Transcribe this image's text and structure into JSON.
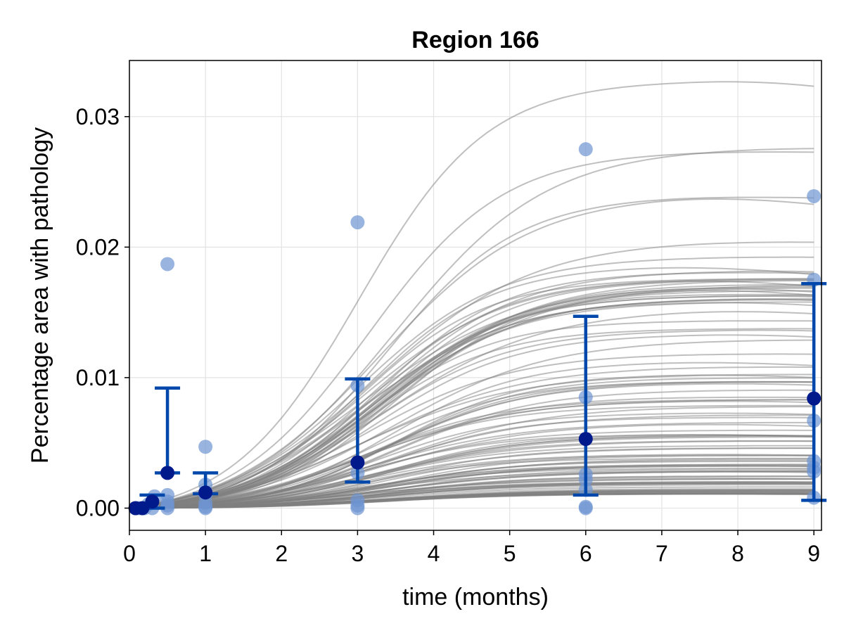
{
  "chart_data": {
    "type": "scatter",
    "title": "Region 166",
    "xlabel": "time (months)",
    "ylabel": "Percentage area with pathology",
    "xlim": [
      0,
      9.1
    ],
    "ylim": [
      -0.0017,
      0.0343
    ],
    "xticks": [
      0,
      1,
      2,
      3,
      4,
      5,
      6,
      7,
      8,
      9
    ],
    "xtick_labels": [
      "0",
      "1",
      "2",
      "3",
      "4",
      "5",
      "6",
      "7",
      "8",
      "9"
    ],
    "yticks": [
      0.0,
      0.01,
      0.02,
      0.03
    ],
    "ytick_labels": [
      "0.00",
      "0.01",
      "0.02",
      "0.03"
    ],
    "grid": true,
    "colors": {
      "curves": "#7f7f7f",
      "observations": "#6d94d2",
      "mean": "#001a8c",
      "errorbars": "#0047ab"
    },
    "curve_model": {
      "description": "posterior predictive logistic trajectories",
      "count": 120,
      "final_range": [
        0.0011,
        0.0328
      ]
    },
    "observations": [
      {
        "x": 0.08,
        "y": 0.0
      },
      {
        "x": 0.12,
        "y": 0.0
      },
      {
        "x": 0.17,
        "y": 0.0
      },
      {
        "x": 0.2,
        "y": 0.0
      },
      {
        "x": 0.3,
        "y": 0.0
      },
      {
        "x": 0.3,
        "y": 0.0005
      },
      {
        "x": 0.33,
        "y": 0.0009
      },
      {
        "x": 0.25,
        "y": 0.0003
      },
      {
        "x": 0.5,
        "y": 0.0187
      },
      {
        "x": 0.5,
        "y": 0.001
      },
      {
        "x": 0.5,
        "y": 0.0005
      },
      {
        "x": 0.5,
        "y": 0.0002
      },
      {
        "x": 0.5,
        "y": 0.0
      },
      {
        "x": 1,
        "y": 0.0047
      },
      {
        "x": 1,
        "y": 0.0018
      },
      {
        "x": 1,
        "y": 0.001
      },
      {
        "x": 1,
        "y": 0.0004
      },
      {
        "x": 1,
        "y": 0.0001
      },
      {
        "x": 1,
        "y": 0.0
      },
      {
        "x": 3,
        "y": 0.0219
      },
      {
        "x": 3,
        "y": 0.0094
      },
      {
        "x": 3,
        "y": 0.0027
      },
      {
        "x": 3,
        "y": 0.0006
      },
      {
        "x": 3,
        "y": 0.0002
      },
      {
        "x": 3,
        "y": 0.0
      },
      {
        "x": 6,
        "y": 0.0275
      },
      {
        "x": 6,
        "y": 0.0085
      },
      {
        "x": 6,
        "y": 0.0026
      },
      {
        "x": 6,
        "y": 0.0022
      },
      {
        "x": 6,
        "y": 0.0014
      },
      {
        "x": 6,
        "y": 0.0001
      },
      {
        "x": 6,
        "y": 0.0
      },
      {
        "x": 9,
        "y": 0.0239
      },
      {
        "x": 9,
        "y": 0.0175
      },
      {
        "x": 9,
        "y": 0.0067
      },
      {
        "x": 9,
        "y": 0.0036
      },
      {
        "x": 9,
        "y": 0.0031
      },
      {
        "x": 9,
        "y": 0.0028
      },
      {
        "x": 9,
        "y": 0.0008
      }
    ],
    "means": [
      {
        "x": 0.08,
        "y": 0.0,
        "lower": 0.0,
        "upper": 0.0
      },
      {
        "x": 0.17,
        "y": 0.0,
        "lower": 0.0,
        "upper": 0.0
      },
      {
        "x": 0.3,
        "y": 0.0005,
        "lower": 0.0,
        "upper": 0.001
      },
      {
        "x": 0.5,
        "y": 0.0027,
        "lower": 0.0027,
        "upper": 0.0092
      },
      {
        "x": 1,
        "y": 0.0012,
        "lower": 0.0011,
        "upper": 0.0027
      },
      {
        "x": 3,
        "y": 0.0035,
        "lower": 0.002,
        "upper": 0.0099
      },
      {
        "x": 6,
        "y": 0.0053,
        "lower": 0.001,
        "upper": 0.0147
      },
      {
        "x": 9,
        "y": 0.0084,
        "lower": 0.0006,
        "upper": 0.0172
      }
    ]
  }
}
